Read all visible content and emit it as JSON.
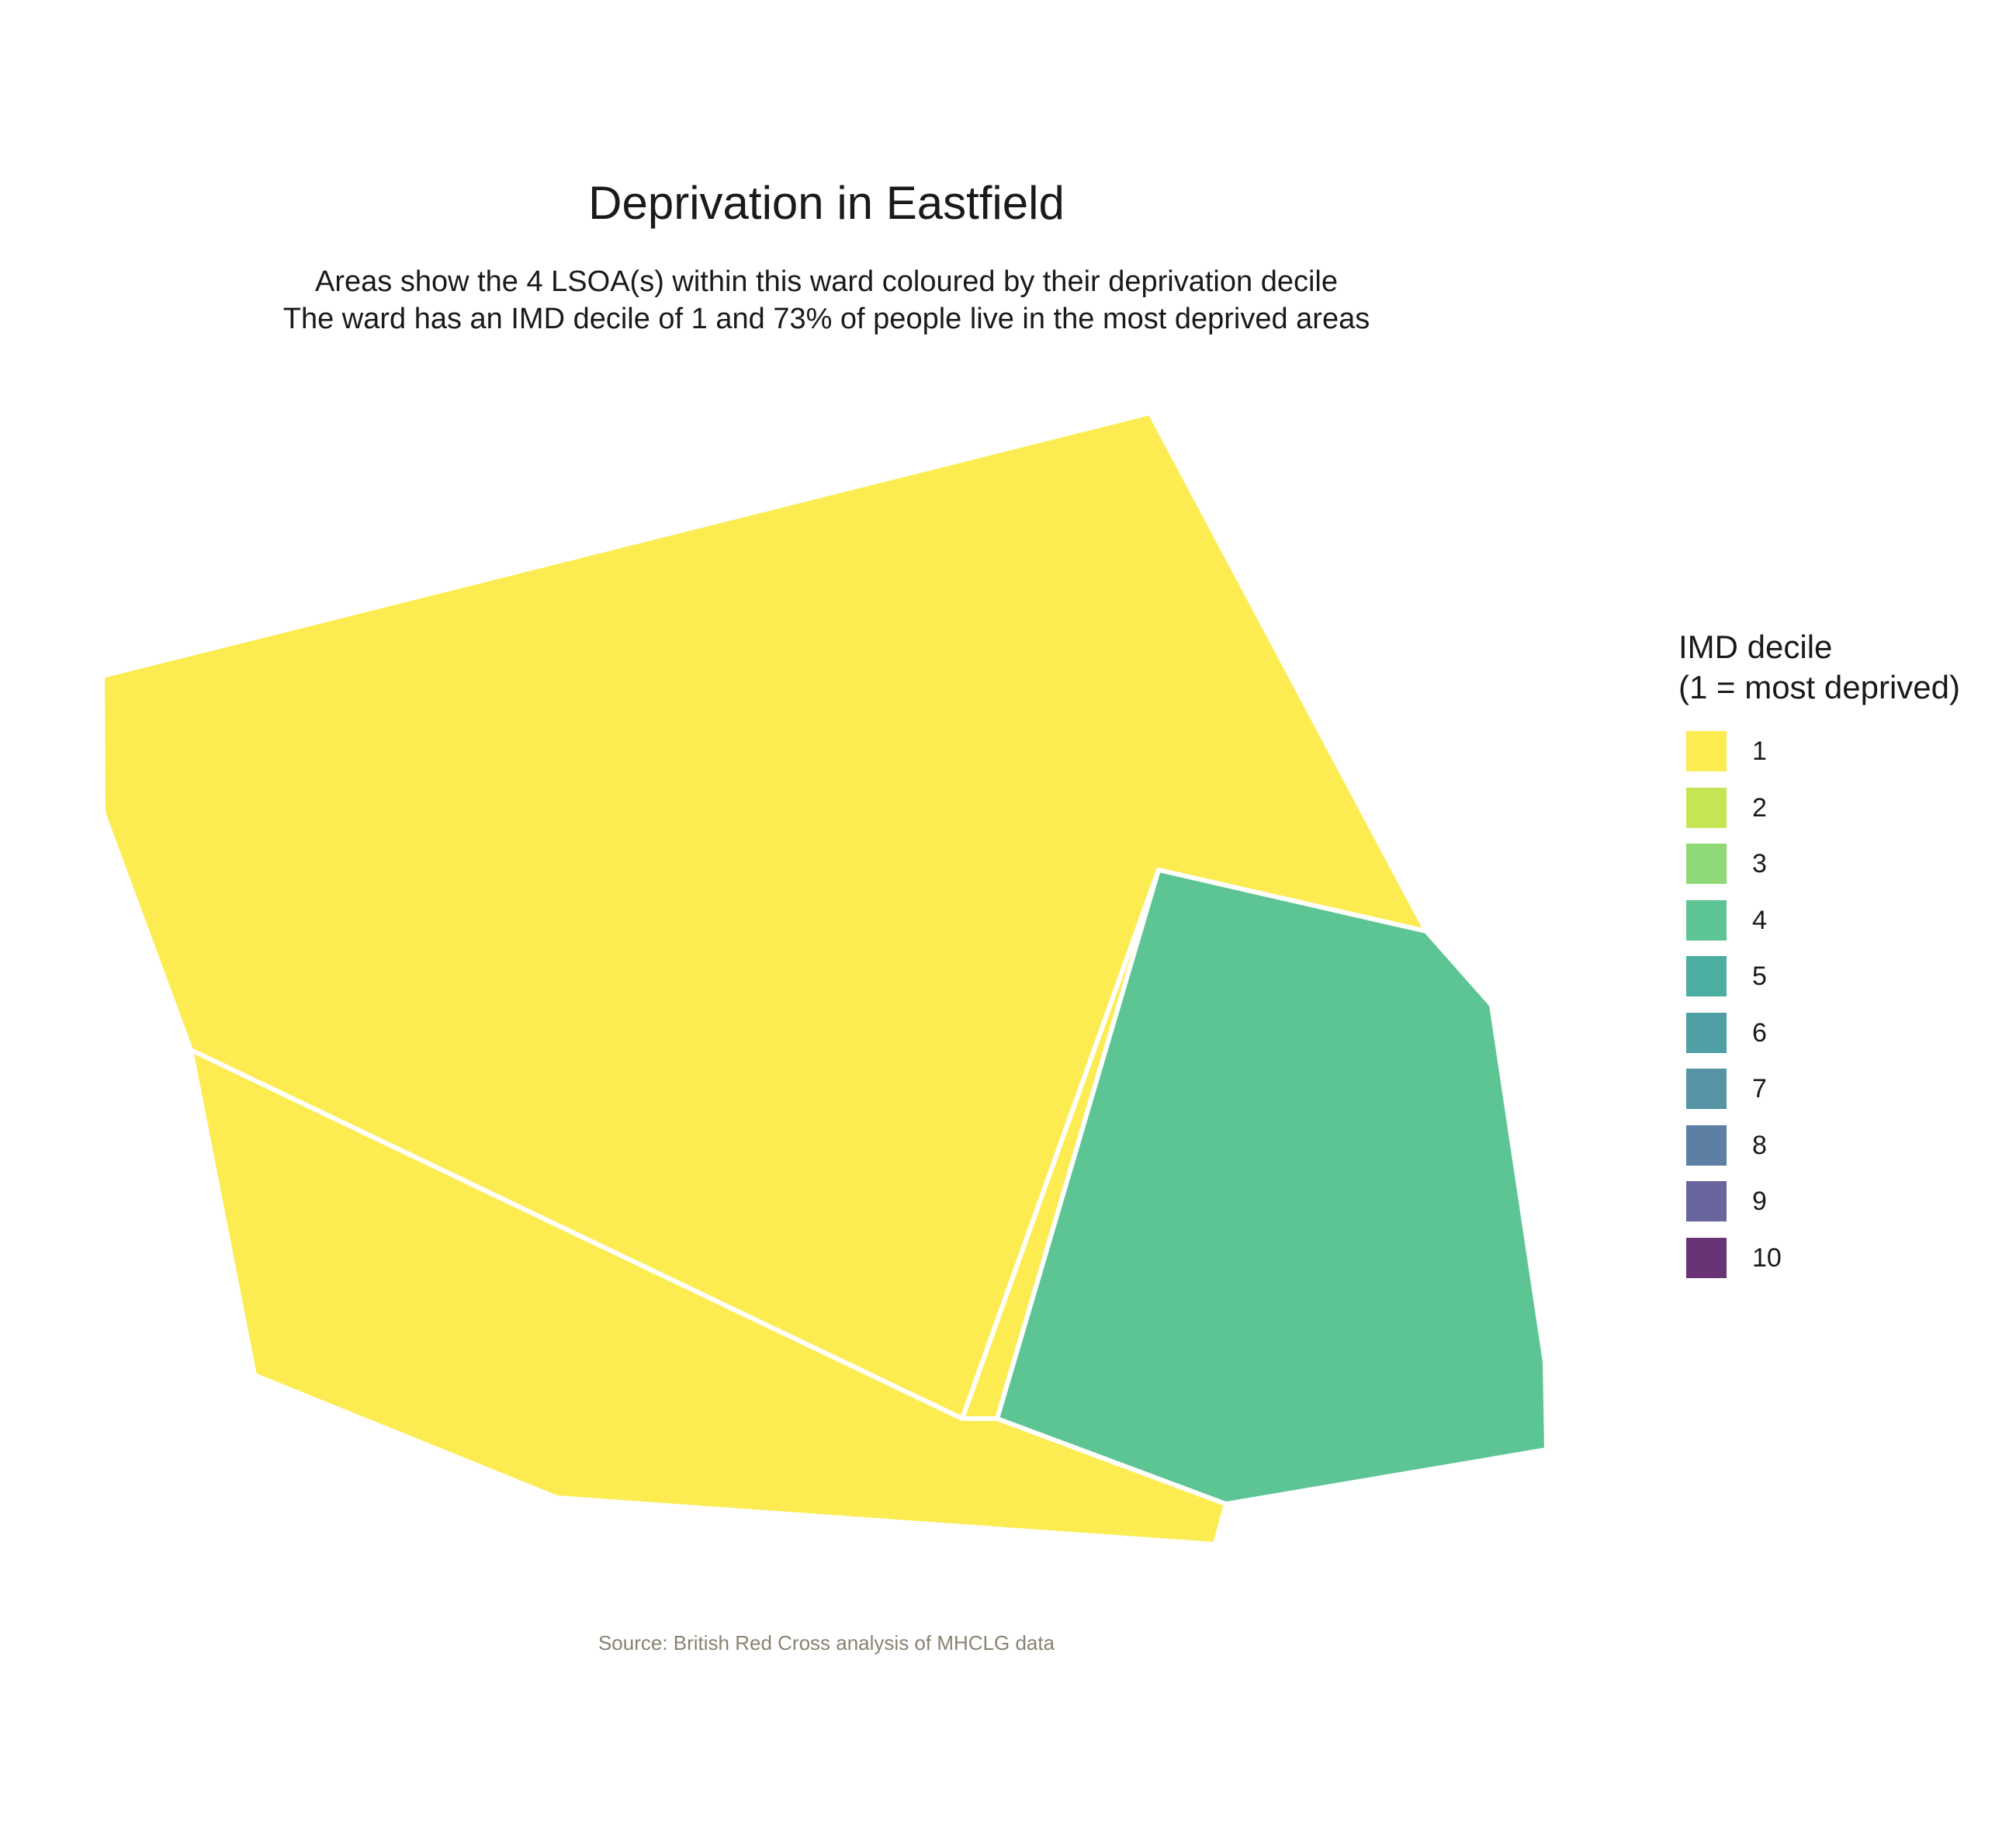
{
  "header": {
    "title": "Deprivation in Eastfield",
    "subtitle_line1": "Areas show the 4 LSOA(s) within this ward coloured by their deprivation decile",
    "subtitle_line2": "The ward has an IMD decile of 1 and 73% of people live in the most deprived areas"
  },
  "map": {
    "areas": [
      {
        "id": "lsoa-1",
        "imd_decile": 1
      },
      {
        "id": "lsoa-2",
        "imd_decile": 1
      },
      {
        "id": "lsoa-3",
        "imd_decile": 1
      },
      {
        "id": "lsoa-4",
        "imd_decile": 4
      }
    ],
    "boundary_color": "#ffffff"
  },
  "legend": {
    "title_line1": "IMD decile",
    "title_line2": "(1 = most deprived)",
    "items": [
      {
        "label": "1",
        "color": "#FDE725"
      },
      {
        "label": "2",
        "color": "#B8DE29"
      },
      {
        "label": "3",
        "color": "#74D055"
      },
      {
        "label": "4",
        "color": "#35B779"
      },
      {
        "label": "5",
        "color": "#1F9A8A"
      },
      {
        "label": "6",
        "color": "#23888E"
      },
      {
        "label": "7",
        "color": "#2A788E"
      },
      {
        "label": "8",
        "color": "#355F8D"
      },
      {
        "label": "9",
        "color": "#433E85"
      },
      {
        "label": "10",
        "color": "#440154"
      }
    ],
    "opacity": 0.8
  },
  "caption": "Source: British Red Cross analysis of MHCLG data"
}
